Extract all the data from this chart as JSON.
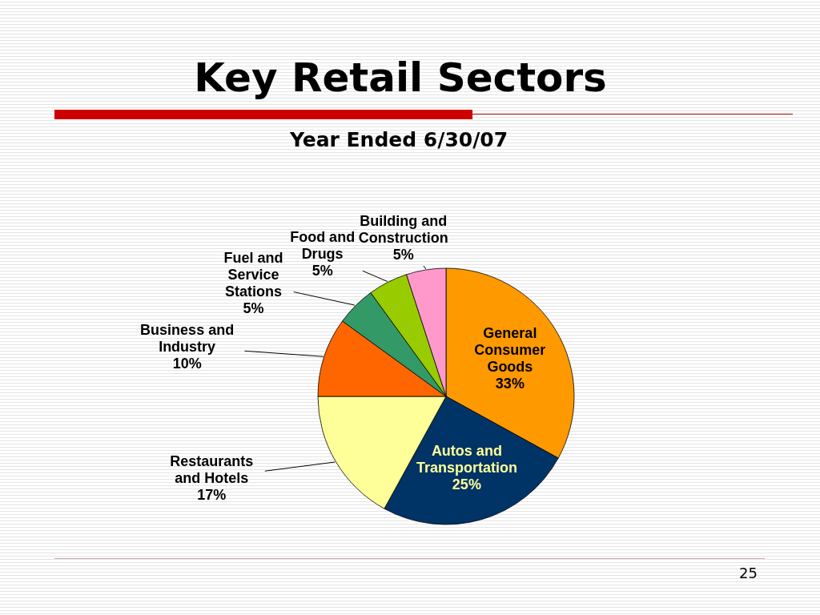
{
  "chart_data": {
    "type": "pie",
    "title": "Key Retail Sectors",
    "subtitle": "Year Ended 6/30/07",
    "categories": [
      "General Consumer Goods",
      "Autos and Transportation",
      "Restaurants and Hotels",
      "Business and Industry",
      "Fuel and Service Stations",
      "Food and Drugs",
      "Building and Construction"
    ],
    "values": [
      33,
      25,
      17,
      10,
      5,
      5,
      5
    ],
    "value_labels": [
      "33%",
      "25%",
      "17%",
      "10%",
      "5%",
      "5%",
      "5%"
    ],
    "colors": [
      "#ff9900",
      "#003366",
      "#ffff99",
      "#ff6600",
      "#339966",
      "#99cc00",
      "#ff99cc"
    ],
    "annotations": [
      "25"
    ]
  }
}
